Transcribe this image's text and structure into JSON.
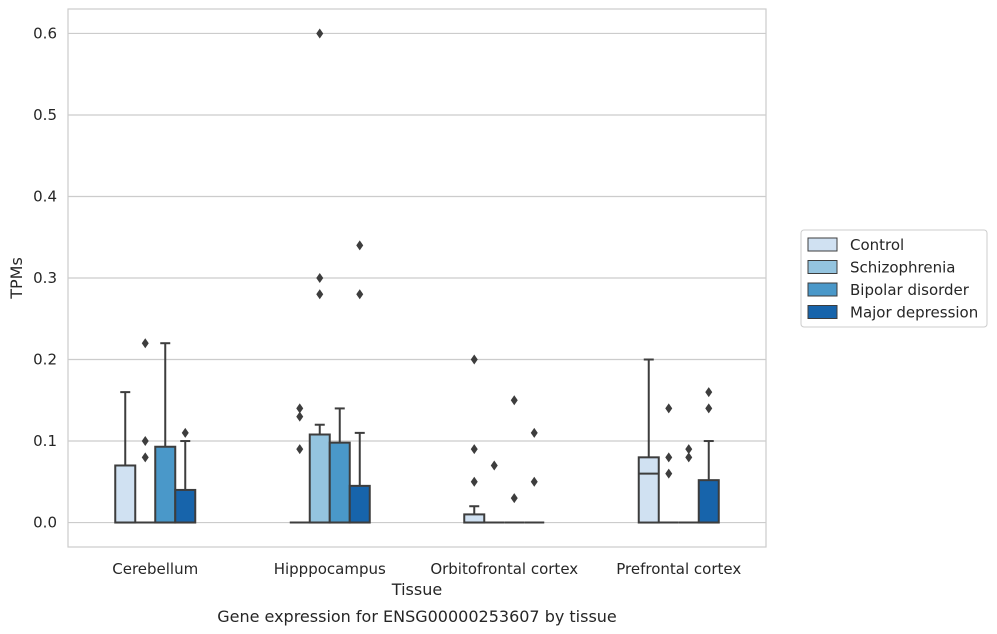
{
  "caption": "Gene expression for ENSG00000253607 by tissue",
  "chart_data": {
    "type": "box",
    "title": "",
    "xlabel": "Tissue",
    "ylabel": "TPMs",
    "ylim": [
      -0.03,
      0.63
    ],
    "yticks": [
      0.0,
      0.1,
      0.2,
      0.3,
      0.4,
      0.5,
      0.6
    ],
    "ytick_labels": [
      "0.0",
      "0.1",
      "0.2",
      "0.3",
      "0.4",
      "0.5",
      "0.6"
    ],
    "grid": "horizontal",
    "legend_position": "right",
    "categories": [
      "Cerebellum",
      "Hipppocampus",
      "Orbitofrontal cortex",
      "Prefrontal cortex"
    ],
    "series": [
      {
        "name": "Control",
        "color": "#d0e1f2",
        "boxes": [
          {
            "q1": 0.0,
            "median": 0.0,
            "q3": 0.07,
            "whisker_low": 0.0,
            "whisker_high": 0.16,
            "outliers": []
          },
          {
            "q1": 0.0,
            "median": 0.0,
            "q3": 0.0,
            "whisker_low": 0.0,
            "whisker_high": 0.0,
            "outliers": [
              0.09,
              0.13,
              0.14
            ]
          },
          {
            "q1": 0.0,
            "median": 0.0,
            "q3": 0.01,
            "whisker_low": 0.0,
            "whisker_high": 0.02,
            "outliers": [
              0.05,
              0.09,
              0.2
            ]
          },
          {
            "q1": 0.0,
            "median": 0.06,
            "q3": 0.08,
            "whisker_low": 0.0,
            "whisker_high": 0.2,
            "outliers": []
          }
        ]
      },
      {
        "name": "Schizophrenia",
        "color": "#94c4df",
        "boxes": [
          {
            "q1": 0.0,
            "median": 0.0,
            "q3": 0.0,
            "whisker_low": 0.0,
            "whisker_high": 0.0,
            "outliers": [
              0.08,
              0.1,
              0.22
            ]
          },
          {
            "q1": 0.0,
            "median": 0.0,
            "q3": 0.108,
            "whisker_low": 0.0,
            "whisker_high": 0.12,
            "outliers": [
              0.28,
              0.3,
              0.6
            ]
          },
          {
            "q1": 0.0,
            "median": 0.0,
            "q3": 0.0,
            "whisker_low": 0.0,
            "whisker_high": 0.0,
            "outliers": [
              0.07
            ]
          },
          {
            "q1": 0.0,
            "median": 0.0,
            "q3": 0.0,
            "whisker_low": 0.0,
            "whisker_high": 0.0,
            "outliers": [
              0.06,
              0.08,
              0.14
            ]
          }
        ]
      },
      {
        "name": "Bipolar disorder",
        "color": "#4a98c9",
        "boxes": [
          {
            "q1": 0.0,
            "median": 0.0,
            "q3": 0.093,
            "whisker_low": 0.0,
            "whisker_high": 0.22,
            "outliers": []
          },
          {
            "q1": 0.0,
            "median": 0.0,
            "q3": 0.098,
            "whisker_low": 0.0,
            "whisker_high": 0.14,
            "outliers": []
          },
          {
            "q1": 0.0,
            "median": 0.0,
            "q3": 0.0,
            "whisker_low": 0.0,
            "whisker_high": 0.0,
            "outliers": [
              0.03,
              0.15
            ]
          },
          {
            "q1": 0.0,
            "median": 0.0,
            "q3": 0.0,
            "whisker_low": 0.0,
            "whisker_high": 0.0,
            "outliers": [
              0.08,
              0.09
            ]
          }
        ]
      },
      {
        "name": "Major depression",
        "color": "#1764ab",
        "boxes": [
          {
            "q1": 0.0,
            "median": 0.0,
            "q3": 0.04,
            "whisker_low": 0.0,
            "whisker_high": 0.1,
            "outliers": [
              0.11
            ]
          },
          {
            "q1": 0.0,
            "median": 0.0,
            "q3": 0.045,
            "whisker_low": 0.0,
            "whisker_high": 0.11,
            "outliers": [
              0.28,
              0.34
            ]
          },
          {
            "q1": 0.0,
            "median": 0.0,
            "q3": 0.0,
            "whisker_low": 0.0,
            "whisker_high": 0.0,
            "outliers": [
              0.05,
              0.11
            ]
          },
          {
            "q1": 0.0,
            "median": 0.0,
            "q3": 0.052,
            "whisker_low": 0.0,
            "whisker_high": 0.1,
            "outliers": [
              0.14,
              0.16
            ]
          }
        ]
      }
    ]
  }
}
